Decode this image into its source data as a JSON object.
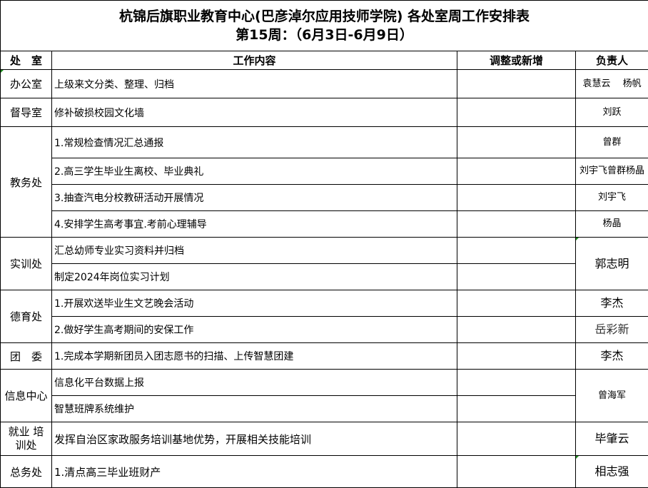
{
  "title": {
    "line1": "杭锦后旗职业教育中心(巴彦淖尔应用技师学院) 各处室周工作安排表",
    "line2": "第15周：（6月3日-6月9日）"
  },
  "headers": {
    "dept": "处　室",
    "content": "工作内容",
    "adjust": "调整或新增",
    "person": "负责人"
  },
  "rows": [
    {
      "dept": "办公室",
      "task": "上级来文分类、整理、归档",
      "person": "袁慧云　 杨帆"
    },
    {
      "dept": "督导室",
      "task": "修补破损校园文化墙",
      "person": "刘跃"
    },
    {
      "dept": "教务处",
      "tasks": [
        {
          "task": "1.常规检查情况汇总通报",
          "person": "曾群"
        },
        {
          "task": "2.高三学生毕业生离校、毕业典礼",
          "person": "刘宇飞曾群杨晶"
        },
        {
          "task": "3.抽查汽电分校教研活动开展情况",
          "person": "刘宇飞"
        },
        {
          "task": "4.安排学生高考事宜.考前心理辅导",
          "person": "杨晶"
        }
      ]
    },
    {
      "dept": "实训处",
      "tasks": [
        {
          "task": "汇总幼师专业实习资料并归档"
        },
        {
          "task": "制定2024年岗位实习计划"
        }
      ],
      "person": "郭志明"
    },
    {
      "dept": "德育处",
      "tasks": [
        {
          "task": "1.开展欢送毕业生文艺晚会活动",
          "person": "李杰"
        },
        {
          "task": "2.做好学生高考期间的安保工作",
          "person": "岳彩新"
        }
      ]
    },
    {
      "dept": "团　委",
      "task": "1.完成本学期新团员入团志愿书的扫描、上传智慧团建",
      "person": "李杰"
    },
    {
      "dept": "信息中心",
      "tasks": [
        {
          "task": "信息化平台数据上报"
        },
        {
          "task": "智慧班牌系统维护"
        }
      ],
      "person": "曾海军"
    },
    {
      "dept": "就业 培训处",
      "task": "发挥自治区家政服务培训基地优势，开展相关技能培训",
      "person": "毕肇云"
    },
    {
      "dept": "总务处",
      "task": "1.清点高三毕业班财产",
      "person": "相志强"
    }
  ]
}
